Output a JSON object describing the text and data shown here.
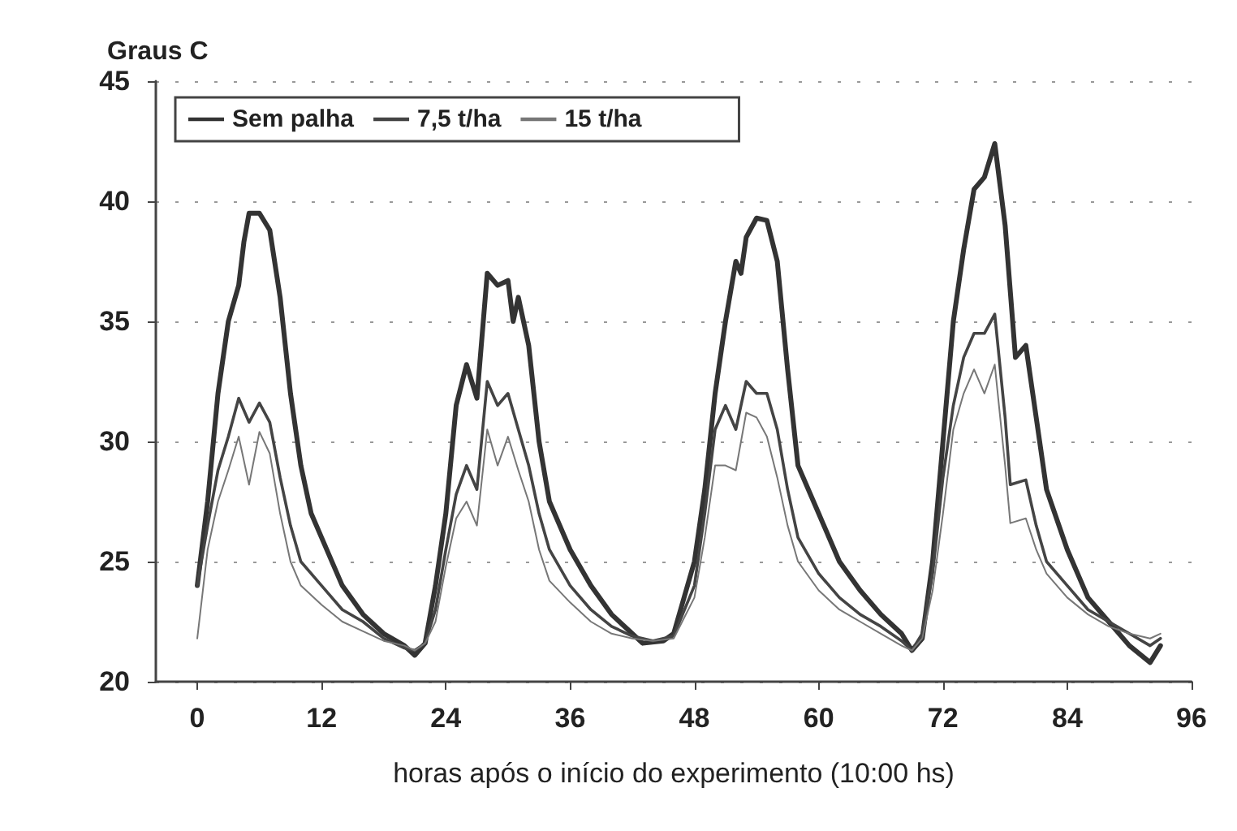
{
  "chart_data": {
    "type": "line",
    "ylabel": "Graus C",
    "xlabel": "horas após o início do experimento (10:00 hs)",
    "xlim": [
      -4,
      96
    ],
    "xticks": [
      0,
      12,
      24,
      36,
      48,
      60,
      72,
      84,
      96
    ],
    "ylim": [
      20,
      45
    ],
    "yticks": [
      20,
      25,
      30,
      35,
      40,
      45
    ],
    "grid": "y",
    "legend": "top left",
    "marker": "none",
    "line_style": "solid",
    "series": [
      {
        "name": "Sem palha",
        "color": "#333333",
        "x": [
          0,
          1,
          2,
          3,
          4,
          4.5,
          5,
          6,
          7,
          8,
          9,
          10,
          11,
          12,
          14,
          16,
          18,
          20,
          21,
          22,
          23,
          24,
          25,
          26,
          27,
          28,
          29,
          30,
          30.5,
          31,
          32,
          33,
          34,
          36,
          38,
          40,
          42,
          43,
          45,
          46,
          48,
          49,
          50,
          51,
          52,
          52.5,
          53,
          54,
          55,
          56,
          57,
          58,
          60,
          62,
          64,
          66,
          68,
          69,
          70,
          71,
          72,
          73,
          74,
          75,
          76,
          77,
          78,
          79,
          80,
          81,
          82,
          84,
          86,
          88,
          90,
          92,
          93
        ],
        "values": [
          24,
          27.5,
          32,
          35,
          36.5,
          38.3,
          39.5,
          39.5,
          38.8,
          36,
          32,
          29,
          27,
          26,
          24,
          22.8,
          22,
          21.5,
          21.1,
          21.6,
          24,
          27,
          31.5,
          33.2,
          31.8,
          37,
          36.5,
          36.7,
          35,
          36,
          34,
          30,
          27.5,
          25.5,
          24,
          22.8,
          22,
          21.6,
          21.7,
          22,
          25,
          28,
          32,
          35,
          37.5,
          37,
          38.5,
          39.3,
          39.2,
          37.5,
          33,
          29,
          27,
          25,
          23.8,
          22.8,
          22,
          21.3,
          21.8,
          25,
          30,
          35,
          38,
          40.5,
          41,
          42.4,
          39,
          33.5,
          34,
          31,
          28,
          25.5,
          23.5,
          22.5,
          21.5,
          20.8,
          21.5
        ]
      },
      {
        "name": "7,5 t/ha",
        "color": "#444444",
        "x": [
          0,
          1,
          2,
          3,
          4,
          5,
          6,
          7,
          8,
          9,
          10,
          12,
          14,
          16,
          18,
          20,
          21,
          22,
          23,
          24,
          25,
          26,
          27,
          28,
          29,
          30,
          31,
          32,
          33,
          34,
          36,
          38,
          40,
          42,
          44,
          46,
          48,
          49,
          50,
          51,
          52,
          53,
          54,
          55,
          56,
          57,
          58,
          60,
          62,
          64,
          66,
          68,
          69,
          70,
          71,
          72,
          73,
          74,
          75,
          76,
          77,
          78,
          78.5,
          80,
          81,
          82,
          84,
          86,
          88,
          90,
          92,
          93
        ],
        "values": [
          24,
          26.5,
          28.8,
          30.2,
          31.8,
          30.8,
          31.6,
          30.8,
          28.5,
          26.5,
          25,
          24,
          23,
          22.5,
          21.8,
          21.4,
          21.3,
          21.6,
          23,
          25.5,
          27.8,
          29,
          28,
          32.5,
          31.5,
          32,
          30.5,
          29,
          27,
          25.5,
          24,
          23,
          22.3,
          21.9,
          21.7,
          21.9,
          24,
          27,
          30.5,
          31.5,
          30.5,
          32.5,
          32,
          32,
          30.5,
          28,
          26,
          24.5,
          23.5,
          22.8,
          22.3,
          21.7,
          21.3,
          22,
          24.5,
          28.5,
          31.5,
          33.5,
          34.5,
          34.5,
          35.3,
          31,
          28.2,
          28.4,
          26.5,
          25,
          24,
          23,
          22.5,
          22,
          21.5,
          21.8
        ]
      },
      {
        "name": "15 t/ha",
        "color": "#777777",
        "x": [
          0,
          1,
          2,
          3,
          4,
          5,
          6,
          7,
          8,
          9,
          10,
          12,
          14,
          16,
          18,
          20,
          21,
          22,
          23,
          24,
          25,
          26,
          27,
          28,
          29,
          30,
          31,
          32,
          33,
          34,
          36,
          38,
          40,
          42,
          44,
          46,
          48,
          49,
          50,
          51,
          52,
          53,
          54,
          55,
          56,
          57,
          58,
          60,
          62,
          64,
          66,
          68,
          69,
          70,
          71,
          72,
          73,
          74,
          75,
          76,
          77,
          78,
          78.5,
          80,
          81,
          82,
          84,
          86,
          88,
          90,
          92,
          93
        ],
        "values": [
          21.8,
          25.5,
          27.5,
          28.8,
          30.2,
          28.2,
          30.4,
          29.5,
          27,
          25,
          24,
          23.2,
          22.5,
          22.1,
          21.7,
          21.5,
          21.3,
          21.6,
          22.5,
          24.8,
          26.8,
          27.5,
          26.5,
          30.5,
          29,
          30.2,
          28.8,
          27.5,
          25.5,
          24.2,
          23.3,
          22.5,
          22,
          21.8,
          21.7,
          21.8,
          23.5,
          26,
          29,
          29,
          28.8,
          31.2,
          31,
          30.2,
          28.5,
          26.5,
          25,
          23.8,
          23,
          22.5,
          22,
          21.5,
          21.3,
          21.8,
          23.8,
          27,
          30.5,
          32,
          33,
          32,
          33.2,
          29,
          26.6,
          26.8,
          25.5,
          24.5,
          23.5,
          22.8,
          22.3,
          22,
          21.8,
          22
        ]
      }
    ]
  }
}
